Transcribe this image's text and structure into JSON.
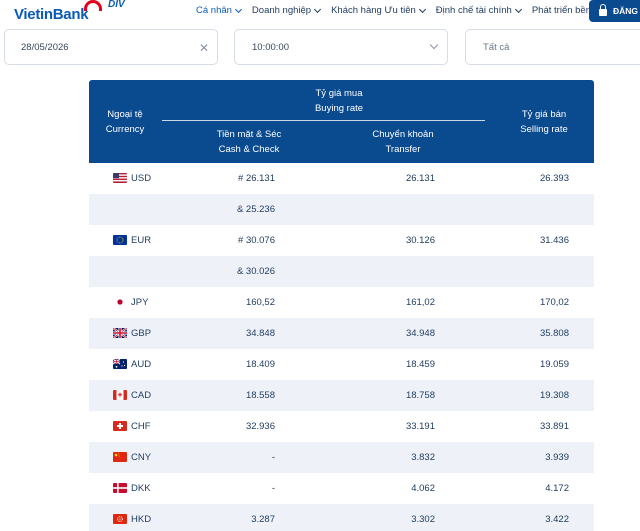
{
  "header": {
    "logo_text": "VietinBank",
    "badge_text": "DIV",
    "nav": [
      {
        "label": "Cá nhân",
        "active": true
      },
      {
        "label": "Doanh nghiệp",
        "active": false
      },
      {
        "label": "Khách hàng Ưu tiên",
        "active": false
      },
      {
        "label": "Định chế tài chính",
        "active": false
      },
      {
        "label": "Phát triển bền vững",
        "active": false
      }
    ],
    "login_label": "ĐĂNG"
  },
  "filters": {
    "date_value": "28/05/2026",
    "time_value": "10:00:00",
    "scope_value": "Tất cả"
  },
  "table": {
    "headers": {
      "currency_vi": "Ngoại tệ",
      "currency_en": "Currency",
      "buying_vi": "Tỷ giá mua",
      "buying_en": "Buying rate",
      "cash_vi": "Tiền mặt & Séc",
      "cash_en": "Cash & Check",
      "transfer_vi": "Chuyển khoản",
      "transfer_en": "Transfer",
      "selling_vi": "Tỷ giá bán",
      "selling_en": "Selling rate"
    },
    "rows": [
      {
        "code": "USD",
        "flag": "us",
        "cash": "# 26.131",
        "transfer": "26.131",
        "sell": "26.393"
      },
      {
        "code": "",
        "flag": "",
        "cash": "& 25.236",
        "transfer": "",
        "sell": ""
      },
      {
        "code": "EUR",
        "flag": "eu",
        "cash": "# 30.076",
        "transfer": "30.126",
        "sell": "31.436"
      },
      {
        "code": "",
        "flag": "",
        "cash": "& 30.026",
        "transfer": "",
        "sell": ""
      },
      {
        "code": "JPY",
        "flag": "jp",
        "cash": "160,52",
        "transfer": "161,02",
        "sell": "170,02"
      },
      {
        "code": "GBP",
        "flag": "gb",
        "cash": "34.848",
        "transfer": "34.948",
        "sell": "35.808"
      },
      {
        "code": "AUD",
        "flag": "au",
        "cash": "18.409",
        "transfer": "18.459",
        "sell": "19.059"
      },
      {
        "code": "CAD",
        "flag": "ca",
        "cash": "18.558",
        "transfer": "18.758",
        "sell": "19.308"
      },
      {
        "code": "CHF",
        "flag": "ch",
        "cash": "32.936",
        "transfer": "33.191",
        "sell": "33.891"
      },
      {
        "code": "CNY",
        "flag": "cn",
        "cash": "-",
        "transfer": "3.832",
        "sell": "3.939"
      },
      {
        "code": "DKK",
        "flag": "dk",
        "cash": "-",
        "transfer": "4.062",
        "sell": "4.172"
      },
      {
        "code": "HKD",
        "flag": "hk",
        "cash": "3.287",
        "transfer": "3.302",
        "sell": "3.422"
      }
    ]
  }
}
